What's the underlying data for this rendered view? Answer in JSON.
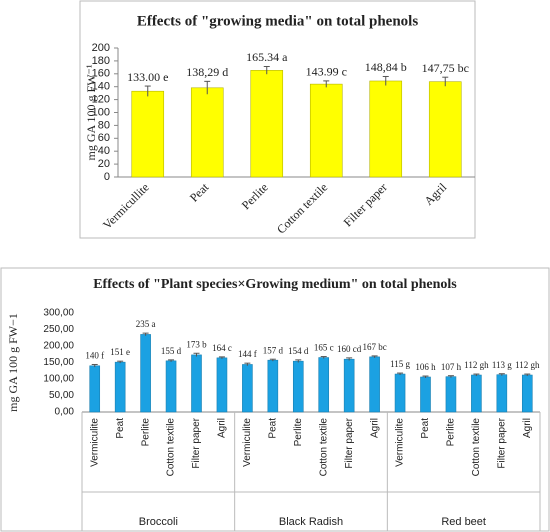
{
  "chart_data": [
    {
      "type": "bar",
      "title": "Effects of \"growing media\" on total phenols",
      "y_label": "mg GA 100 g FW⁻¹",
      "categories": [
        "Vermicullite",
        "Peat",
        "Perlite",
        "Cotton textile",
        "Filter paper",
        "Agril"
      ],
      "values": [
        133.0,
        138.29,
        165.34,
        143.99,
        148.84,
        147.75
      ],
      "value_labels": [
        "133.00 e",
        "138,29  d",
        "165.34 a",
        "143.99 c",
        "148,84 b",
        "147,75 bc"
      ],
      "errors": [
        8,
        10,
        6,
        5,
        7,
        7
      ],
      "color": "#ffff00",
      "ylim": [
        0,
        200
      ],
      "yticks": [
        0,
        20,
        40,
        60,
        80,
        100,
        120,
        140,
        160,
        180,
        200
      ],
      "grid": false
    },
    {
      "type": "bar",
      "title": "Effects of \"Plant species×Growing medium\" on total phenols",
      "y_label": "mg GA 100 g FW−1",
      "categories": [
        "Vermiculite",
        "Peat",
        "Perlite",
        "Cotton textile",
        "Filter paper",
        "Agril",
        "Vermiculite",
        "Peat",
        "Perlite",
        "Cotton textile",
        "Filter paper",
        "Agril",
        "Vermiculite",
        "Peat",
        "Perlite",
        "Cotton textile",
        "Filter paper",
        "Agril"
      ],
      "groups": [
        "Broccoli",
        "Black Radish",
        "Red beet"
      ],
      "values": [
        140,
        151,
        235,
        155,
        173,
        164,
        144,
        157,
        154,
        165,
        160,
        167,
        115,
        106,
        107,
        112,
        113,
        112
      ],
      "value_labels": [
        "140 f",
        "151 e",
        "235 a",
        "155 d",
        "173 b",
        "164 c",
        "144 f",
        "157 d",
        "154 d",
        "165 c",
        "160 cd",
        "167 bc",
        "115 g",
        "106 h",
        "107 h",
        "112 gh",
        "113 g",
        "112 gh"
      ],
      "errors": [
        4,
        3,
        4,
        3,
        5,
        3,
        4,
        3,
        4,
        3,
        4,
        3,
        3,
        3,
        3,
        3,
        3,
        3
      ],
      "color": "#1ba1e2",
      "ylim": [
        0,
        300
      ],
      "yticks": [
        {
          "value": 0,
          "label": "0,00"
        },
        {
          "value": 50,
          "label": "50,00"
        },
        {
          "value": 100,
          "label": "100,00"
        },
        {
          "value": 150,
          "label": "150,00"
        },
        {
          "value": 200,
          "label": "200,00"
        },
        {
          "value": 250,
          "label": "250,00"
        },
        {
          "value": 300,
          "label": "300,00"
        }
      ],
      "grid": false
    }
  ]
}
